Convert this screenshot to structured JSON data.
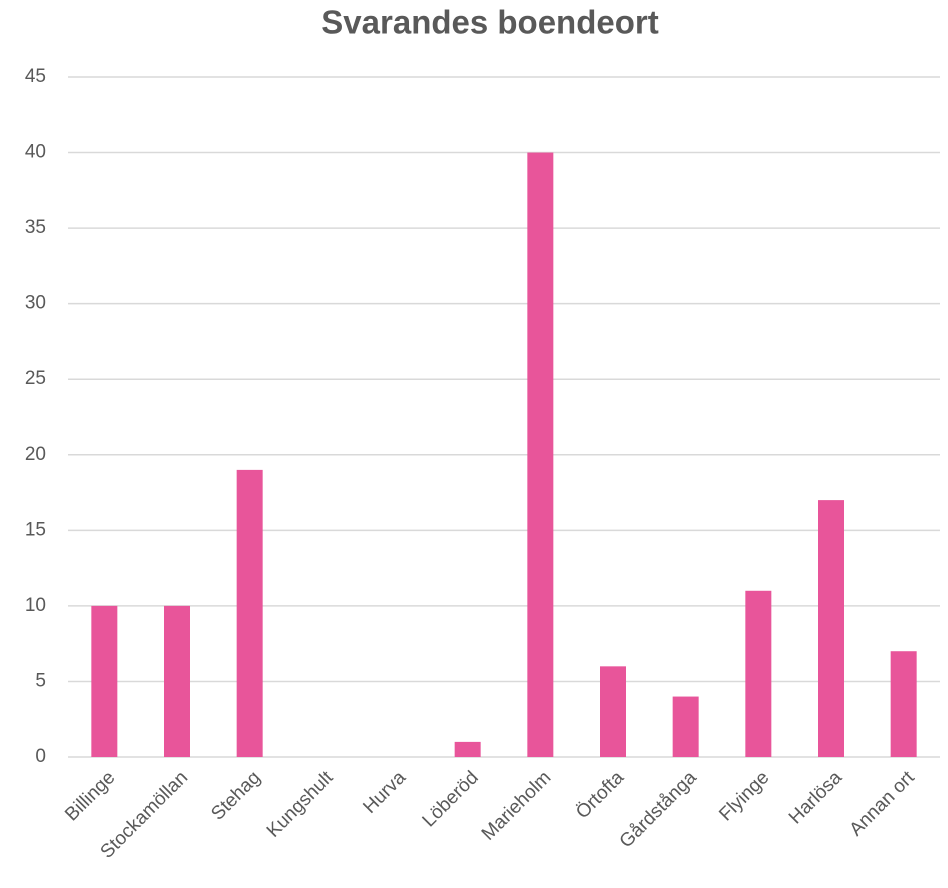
{
  "chart_data": {
    "type": "bar",
    "title": "Svarandes boendeort",
    "categories": [
      "Billinge",
      "Stockamöllan",
      "Stehag",
      "Kungshult",
      "Hurva",
      "Löberöd",
      "Marieholm",
      "Örtofta",
      "Gårdstånga",
      "Flyinge",
      "Harlösa",
      "Annan ort"
    ],
    "values": [
      10,
      10,
      19,
      0,
      0,
      1,
      40,
      6,
      4,
      11,
      17,
      7
    ],
    "color": "#e8559a",
    "ylim": [
      0,
      45
    ],
    "yticks": [
      0,
      5,
      10,
      15,
      20,
      25,
      30,
      35,
      40,
      45
    ],
    "grid": true
  }
}
